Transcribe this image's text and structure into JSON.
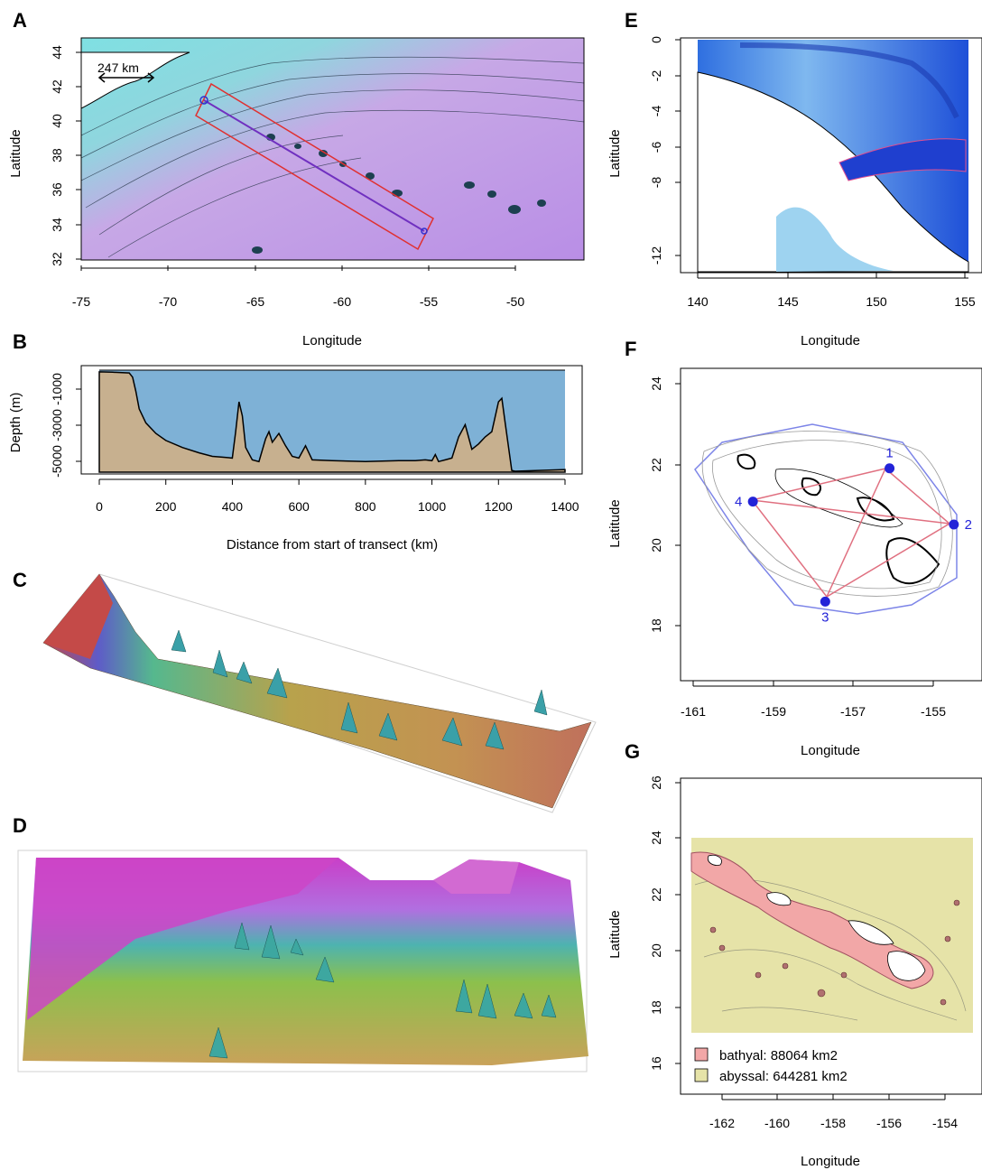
{
  "panels": {
    "A": {
      "letter": "A",
      "xlabel": "",
      "ylabel": "Latitude",
      "xticks": [
        "-75",
        "-70",
        "-65",
        "-60",
        "-55",
        "-50"
      ],
      "yticks": [
        "32",
        "34",
        "36",
        "38",
        "40",
        "42",
        "44"
      ],
      "scale_label": "247 km"
    },
    "B": {
      "letter": "B",
      "xlabel": "Distance from start of transect (km)",
      "ylabel": "Depth (m)",
      "xticks": [
        "0",
        "200",
        "400",
        "600",
        "800",
        "1000",
        "1200",
        "1400"
      ],
      "yticks": [
        "-1000",
        "-3000",
        "-5000"
      ]
    },
    "C": {
      "letter": "C"
    },
    "D": {
      "letter": "D"
    },
    "E": {
      "letter": "E",
      "xlabel": "Longitude",
      "ylabel": "Latitude",
      "xticks": [
        "140",
        "145",
        "150",
        "155"
      ],
      "yticks": [
        "0",
        "-2",
        "-4",
        "-6",
        "-8",
        "-12"
      ]
    },
    "F": {
      "letter": "F",
      "xlabel": "Longitude",
      "ylabel": "Latitude",
      "xticks": [
        "-161",
        "-159",
        "-157",
        "-155"
      ],
      "yticks": [
        "18",
        "20",
        "22",
        "24"
      ],
      "point_labels": [
        "1",
        "2",
        "3",
        "4"
      ]
    },
    "G": {
      "letter": "G",
      "xlabel": "Longitude",
      "ylabel": "Latitude",
      "xticks": [
        "-162",
        "-160",
        "-158",
        "-156",
        "-154"
      ],
      "yticks": [
        "16",
        "18",
        "20",
        "22",
        "24",
        "26"
      ],
      "legend": [
        {
          "label": "bathyal: 88064 km2",
          "color": "#f2a7a7"
        },
        {
          "label": "abyssal: 644281 km2",
          "color": "#e6e3a8"
        }
      ]
    },
    "A_bottom": {
      "xlabel": "Longitude"
    }
  },
  "chart_data": [
    {
      "panel": "A",
      "type": "heatmap",
      "description_axis": {
        "xlim": [
          -75,
          -46
        ],
        "ylim": [
          32,
          44
        ]
      },
      "transect_start": {
        "lon": -67.9,
        "lat": 41.2
      },
      "transect_end": {
        "lon": -55.1,
        "lat": 33.6
      }
    },
    {
      "panel": "B",
      "type": "area",
      "xlim": [
        0,
        1400
      ],
      "ylim": [
        -5800,
        0
      ],
      "x": [
        0,
        40,
        90,
        100,
        110,
        120,
        140,
        170,
        200,
        250,
        300,
        340,
        370,
        400,
        410,
        420,
        430,
        440,
        460,
        480,
        500,
        510,
        520,
        540,
        560,
        580,
        600,
        620,
        640,
        700,
        800,
        900,
        950,
        980,
        1000,
        1010,
        1020,
        1040,
        1060,
        1080,
        1100,
        1120,
        1140,
        1160,
        1180,
        1200,
        1210,
        1220,
        1240,
        1250,
        1300,
        1400
      ],
      "depth": [
        -100,
        -120,
        -160,
        -400,
        -1200,
        -2200,
        -3000,
        -3600,
        -4000,
        -4400,
        -4700,
        -4900,
        -4950,
        -5000,
        -3500,
        -1800,
        -2600,
        -4400,
        -5100,
        -5200,
        -3900,
        -3500,
        -4100,
        -3600,
        -4300,
        -4900,
        -5000,
        -4300,
        -5100,
        -5150,
        -5200,
        -5150,
        -5150,
        -5100,
        -5150,
        -4800,
        -5200,
        -5100,
        -5000,
        -3800,
        -3100,
        -4500,
        -4200,
        -3800,
        -3500,
        -1800,
        -1600,
        -3000,
        -5700,
        -5750,
        -5720,
        -5650
      ]
    },
    {
      "panel": "E",
      "type": "heatmap",
      "xlim": [
        140,
        155
      ],
      "ylim": [
        -13,
        0
      ]
    },
    {
      "panel": "F",
      "type": "scatter",
      "xlim": [
        -161.3,
        -153.8
      ],
      "ylim": [
        16.8,
        24.3
      ],
      "points": [
        {
          "label": "1",
          "lon": -156.1,
          "lat": 21.9
        },
        {
          "label": "2",
          "lon": -154.5,
          "lat": 20.55
        },
        {
          "label": "3",
          "lon": -157.7,
          "lat": 18.7
        },
        {
          "label": "4",
          "lon": -159.5,
          "lat": 21.1
        }
      ]
    },
    {
      "panel": "G",
      "type": "heatmap",
      "xlim": [
        -163,
        -152.8
      ],
      "ylim": [
        15.2,
        26.3
      ],
      "series": [
        {
          "name": "bathyal",
          "area_km2": 88064
        },
        {
          "name": "abyssal",
          "area_km2": 644281
        }
      ]
    }
  ]
}
